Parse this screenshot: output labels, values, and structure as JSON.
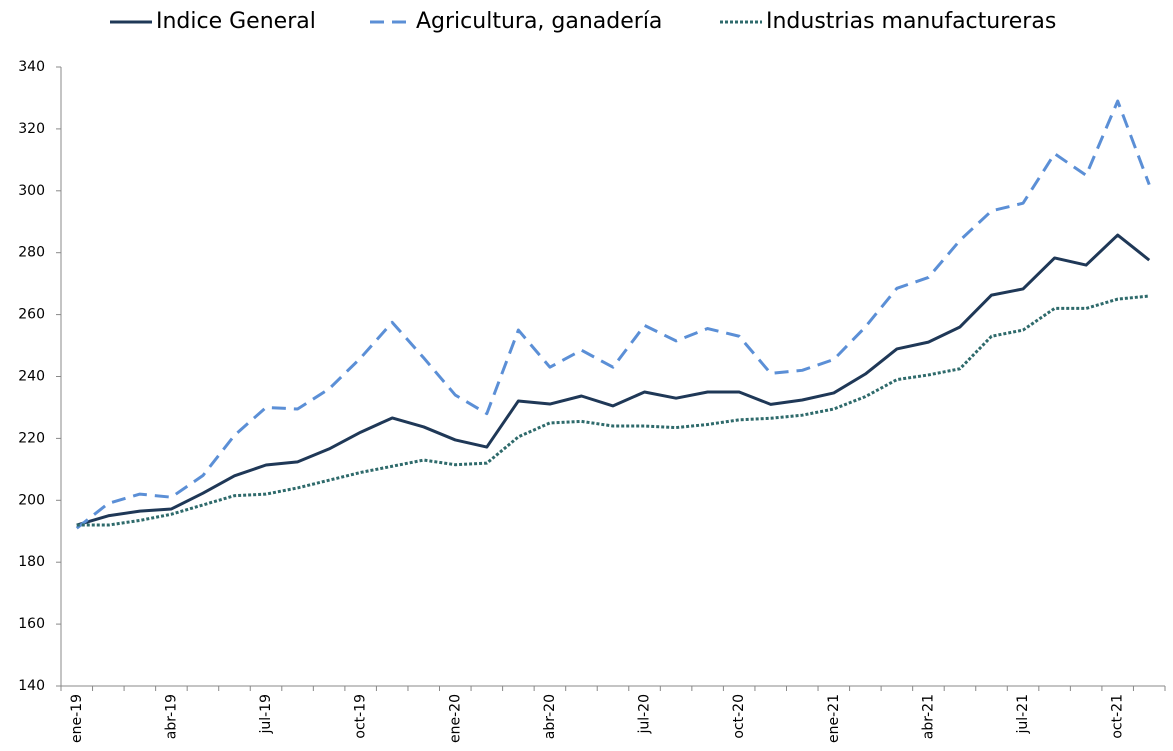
{
  "chart_data": {
    "type": "line",
    "categories": [
      "ene-19",
      null,
      null,
      "abr-19",
      null,
      null,
      "jul-19",
      null,
      null,
      "oct-19",
      null,
      null,
      "ene-20",
      null,
      null,
      "abr-20",
      null,
      null,
      "jul-20",
      null,
      null,
      "oct-20",
      null,
      null,
      "ene-21",
      null,
      null,
      "abr-21",
      null,
      null,
      "jul-21",
      null,
      null,
      "oct-21",
      null
    ],
    "series": [
      {
        "name": "Indice General",
        "color": "#1f3857",
        "dash": "solid",
        "values": [
          192,
          195,
          196.5,
          197.2,
          202.3,
          207.9,
          211.4,
          212.4,
          216.6,
          222,
          226.6,
          223.7,
          219.5,
          217.2,
          232.1,
          231.1,
          233.7,
          230.5,
          235,
          233,
          235,
          235,
          231,
          232.4,
          234.7,
          240.8,
          248.9,
          251.1,
          256,
          266.3,
          268.3,
          278.3,
          276,
          285.7,
          277.6
        ]
      },
      {
        "name": "Agricultura, ganadería",
        "color": "#5b8fd6",
        "dash": "dashed",
        "values": [
          191,
          199,
          202,
          201,
          208,
          221,
          230,
          229.5,
          236,
          246,
          257.5,
          246,
          234,
          228,
          255,
          243,
          248.5,
          243,
          256.5,
          251.5,
          255.5,
          253,
          241,
          242,
          245.5,
          256,
          268.5,
          272,
          284,
          293.5,
          296,
          312,
          305,
          329,
          302
        ]
      },
      {
        "name": "Industrias manufactureras",
        "color": "#2e6a6b",
        "dash": "dotted",
        "values": [
          192,
          192,
          193.5,
          195.5,
          198.5,
          201.5,
          202,
          204,
          206.5,
          209,
          211,
          213,
          211.5,
          212,
          220.5,
          225,
          225.5,
          224,
          224,
          223.5,
          224.5,
          226,
          226.5,
          227.5,
          229.5,
          233.5,
          239,
          240.5,
          242.5,
          253,
          255,
          262,
          262,
          265,
          266
        ]
      }
    ],
    "ylim": [
      140,
      340
    ],
    "yticks": [
      140,
      160,
      180,
      200,
      220,
      240,
      260,
      280,
      300,
      320,
      340
    ],
    "grid": false,
    "legend": "top"
  }
}
